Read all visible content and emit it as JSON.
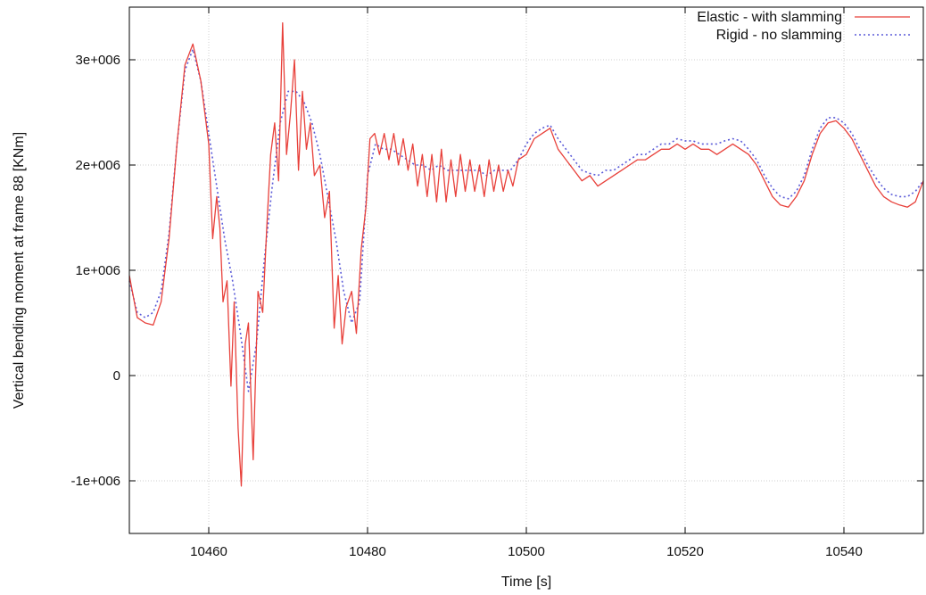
{
  "chart_data": {
    "type": "line",
    "title": "",
    "xlabel": "Time [s]",
    "ylabel": "Vertical bending moment at frame 88 [KNm]",
    "xlim": [
      10450,
      10550
    ],
    "ylim": [
      -1500000,
      3500000
    ],
    "xticks": [
      {
        "value": 10460,
        "label": "10460"
      },
      {
        "value": 10480,
        "label": "10480"
      },
      {
        "value": 10500,
        "label": "10500"
      },
      {
        "value": 10520,
        "label": "10520"
      },
      {
        "value": 10540,
        "label": "10540"
      }
    ],
    "yticks": [
      {
        "value": -1000000,
        "label": "-1e+006"
      },
      {
        "value": 0,
        "label": "0"
      },
      {
        "value": 1000000,
        "label": "1e+006"
      },
      {
        "value": 2000000,
        "label": "2e+006"
      },
      {
        "value": 3000000,
        "label": "3e+006"
      }
    ],
    "grid": true,
    "legend_position": "top-right",
    "series": [
      {
        "name": "Elastic - with slamming",
        "color": "#e8403a",
        "style": "solid",
        "points": [
          [
            10450,
            950000
          ],
          [
            10451,
            550000
          ],
          [
            10452,
            500000
          ],
          [
            10453,
            480000
          ],
          [
            10454,
            700000
          ],
          [
            10455,
            1300000
          ],
          [
            10456,
            2200000
          ],
          [
            10457,
            2950000
          ],
          [
            10458,
            3150000
          ],
          [
            10459,
            2800000
          ],
          [
            10460,
            2200000
          ],
          [
            10460.5,
            1300000
          ],
          [
            10461,
            1700000
          ],
          [
            10461.4,
            1400000
          ],
          [
            10461.8,
            700000
          ],
          [
            10462.3,
            900000
          ],
          [
            10462.8,
            -100000
          ],
          [
            10463.2,
            700000
          ],
          [
            10463.7,
            -500000
          ],
          [
            10464.1,
            -1050000
          ],
          [
            10464.6,
            300000
          ],
          [
            10465,
            500000
          ],
          [
            10465.6,
            -800000
          ],
          [
            10466.2,
            800000
          ],
          [
            10466.8,
            600000
          ],
          [
            10467.3,
            1400000
          ],
          [
            10467.8,
            2100000
          ],
          [
            10468.3,
            2400000
          ],
          [
            10468.8,
            1850000
          ],
          [
            10469.3,
            3350000
          ],
          [
            10469.8,
            2100000
          ],
          [
            10470.3,
            2500000
          ],
          [
            10470.8,
            3000000
          ],
          [
            10471.3,
            1950000
          ],
          [
            10471.8,
            2700000
          ],
          [
            10472.3,
            2150000
          ],
          [
            10472.8,
            2400000
          ],
          [
            10473.3,
            1900000
          ],
          [
            10474,
            2000000
          ],
          [
            10474.6,
            1500000
          ],
          [
            10475.2,
            1750000
          ],
          [
            10475.8,
            450000
          ],
          [
            10476.3,
            950000
          ],
          [
            10476.8,
            300000
          ],
          [
            10477.3,
            650000
          ],
          [
            10478,
            800000
          ],
          [
            10478.6,
            400000
          ],
          [
            10479.2,
            1200000
          ],
          [
            10479.8,
            1600000
          ],
          [
            10480.3,
            2250000
          ],
          [
            10480.9,
            2300000
          ],
          [
            10481.5,
            2100000
          ],
          [
            10482.1,
            2300000
          ],
          [
            10482.7,
            2050000
          ],
          [
            10483.3,
            2300000
          ],
          [
            10483.9,
            2000000
          ],
          [
            10484.5,
            2250000
          ],
          [
            10485.1,
            1950000
          ],
          [
            10485.7,
            2200000
          ],
          [
            10486.3,
            1800000
          ],
          [
            10486.9,
            2100000
          ],
          [
            10487.5,
            1700000
          ],
          [
            10488.1,
            2100000
          ],
          [
            10488.7,
            1650000
          ],
          [
            10489.3,
            2150000
          ],
          [
            10489.9,
            1650000
          ],
          [
            10490.5,
            2050000
          ],
          [
            10491.1,
            1700000
          ],
          [
            10491.7,
            2100000
          ],
          [
            10492.3,
            1750000
          ],
          [
            10492.9,
            2050000
          ],
          [
            10493.5,
            1750000
          ],
          [
            10494.1,
            2000000
          ],
          [
            10494.7,
            1700000
          ],
          [
            10495.3,
            2050000
          ],
          [
            10495.9,
            1750000
          ],
          [
            10496.5,
            2000000
          ],
          [
            10497.1,
            1750000
          ],
          [
            10497.7,
            1950000
          ],
          [
            10498.3,
            1800000
          ],
          [
            10499,
            2050000
          ],
          [
            10500,
            2100000
          ],
          [
            10501,
            2250000
          ],
          [
            10502,
            2300000
          ],
          [
            10503,
            2350000
          ],
          [
            10504,
            2150000
          ],
          [
            10505,
            2050000
          ],
          [
            10506,
            1950000
          ],
          [
            10507,
            1850000
          ],
          [
            10508,
            1900000
          ],
          [
            10509,
            1800000
          ],
          [
            10510,
            1850000
          ],
          [
            10511,
            1900000
          ],
          [
            10512,
            1950000
          ],
          [
            10513,
            2000000
          ],
          [
            10514,
            2050000
          ],
          [
            10515,
            2050000
          ],
          [
            10516,
            2100000
          ],
          [
            10517,
            2150000
          ],
          [
            10518,
            2150000
          ],
          [
            10519,
            2200000
          ],
          [
            10520,
            2150000
          ],
          [
            10521,
            2200000
          ],
          [
            10522,
            2150000
          ],
          [
            10523,
            2150000
          ],
          [
            10524,
            2100000
          ],
          [
            10525,
            2150000
          ],
          [
            10526,
            2200000
          ],
          [
            10527,
            2150000
          ],
          [
            10528,
            2100000
          ],
          [
            10529,
            2000000
          ],
          [
            10530,
            1850000
          ],
          [
            10531,
            1700000
          ],
          [
            10532,
            1620000
          ],
          [
            10533,
            1600000
          ],
          [
            10534,
            1700000
          ],
          [
            10535,
            1850000
          ],
          [
            10536,
            2100000
          ],
          [
            10537,
            2300000
          ],
          [
            10538,
            2400000
          ],
          [
            10539,
            2420000
          ],
          [
            10540,
            2350000
          ],
          [
            10541,
            2250000
          ],
          [
            10542,
            2100000
          ],
          [
            10543,
            1950000
          ],
          [
            10544,
            1800000
          ],
          [
            10545,
            1700000
          ],
          [
            10546,
            1650000
          ],
          [
            10547,
            1620000
          ],
          [
            10548,
            1600000
          ],
          [
            10549,
            1650000
          ],
          [
            10550,
            1850000
          ]
        ]
      },
      {
        "name": "Rigid - no slamming",
        "color": "#5a5ad8",
        "style": "dotted",
        "points": [
          [
            10450,
            900000
          ],
          [
            10451,
            600000
          ],
          [
            10452,
            550000
          ],
          [
            10453,
            600000
          ],
          [
            10454,
            800000
          ],
          [
            10455,
            1350000
          ],
          [
            10456,
            2200000
          ],
          [
            10457,
            2900000
          ],
          [
            10458,
            3100000
          ],
          [
            10459,
            2800000
          ],
          [
            10460,
            2300000
          ],
          [
            10461,
            1800000
          ],
          [
            10462,
            1300000
          ],
          [
            10463,
            900000
          ],
          [
            10464,
            400000
          ],
          [
            10465,
            -150000
          ],
          [
            10466,
            300000
          ],
          [
            10467,
            1100000
          ],
          [
            10468,
            1800000
          ],
          [
            10469,
            2400000
          ],
          [
            10470,
            2700000
          ],
          [
            10471,
            2700000
          ],
          [
            10472,
            2600000
          ],
          [
            10473,
            2400000
          ],
          [
            10474,
            2100000
          ],
          [
            10475,
            1700000
          ],
          [
            10476,
            1300000
          ],
          [
            10477,
            800000
          ],
          [
            10478,
            500000
          ],
          [
            10479,
            700000
          ],
          [
            10480,
            1900000
          ],
          [
            10481,
            2200000
          ],
          [
            10482,
            2150000
          ],
          [
            10483,
            2150000
          ],
          [
            10484,
            2100000
          ],
          [
            10485,
            2050000
          ],
          [
            10486,
            2000000
          ],
          [
            10487,
            2000000
          ],
          [
            10488,
            1950000
          ],
          [
            10489,
            2000000
          ],
          [
            10490,
            1950000
          ],
          [
            10491,
            1950000
          ],
          [
            10492,
            1950000
          ],
          [
            10493,
            1950000
          ],
          [
            10494,
            1950000
          ],
          [
            10495,
            1900000
          ],
          [
            10496,
            1950000
          ],
          [
            10497,
            1950000
          ],
          [
            10498,
            1950000
          ],
          [
            10499,
            2050000
          ],
          [
            10500,
            2200000
          ],
          [
            10501,
            2300000
          ],
          [
            10502,
            2350000
          ],
          [
            10503,
            2380000
          ],
          [
            10504,
            2250000
          ],
          [
            10505,
            2150000
          ],
          [
            10506,
            2050000
          ],
          [
            10507,
            1950000
          ],
          [
            10508,
            1920000
          ],
          [
            10509,
            1900000
          ],
          [
            10510,
            1950000
          ],
          [
            10511,
            1950000
          ],
          [
            10512,
            2000000
          ],
          [
            10513,
            2050000
          ],
          [
            10514,
            2100000
          ],
          [
            10515,
            2100000
          ],
          [
            10516,
            2150000
          ],
          [
            10517,
            2200000
          ],
          [
            10518,
            2200000
          ],
          [
            10519,
            2250000
          ],
          [
            10520,
            2230000
          ],
          [
            10521,
            2230000
          ],
          [
            10522,
            2200000
          ],
          [
            10523,
            2200000
          ],
          [
            10524,
            2200000
          ],
          [
            10525,
            2230000
          ],
          [
            10526,
            2250000
          ],
          [
            10527,
            2230000
          ],
          [
            10528,
            2150000
          ],
          [
            10529,
            2050000
          ],
          [
            10530,
            1900000
          ],
          [
            10531,
            1780000
          ],
          [
            10532,
            1700000
          ],
          [
            10533,
            1680000
          ],
          [
            10534,
            1750000
          ],
          [
            10535,
            1900000
          ],
          [
            10536,
            2150000
          ],
          [
            10537,
            2350000
          ],
          [
            10538,
            2450000
          ],
          [
            10539,
            2450000
          ],
          [
            10540,
            2400000
          ],
          [
            10541,
            2300000
          ],
          [
            10542,
            2150000
          ],
          [
            10543,
            2000000
          ],
          [
            10544,
            1880000
          ],
          [
            10545,
            1780000
          ],
          [
            10546,
            1720000
          ],
          [
            10547,
            1700000
          ],
          [
            10548,
            1700000
          ],
          [
            10549,
            1750000
          ],
          [
            10550,
            1850000
          ]
        ]
      }
    ]
  }
}
